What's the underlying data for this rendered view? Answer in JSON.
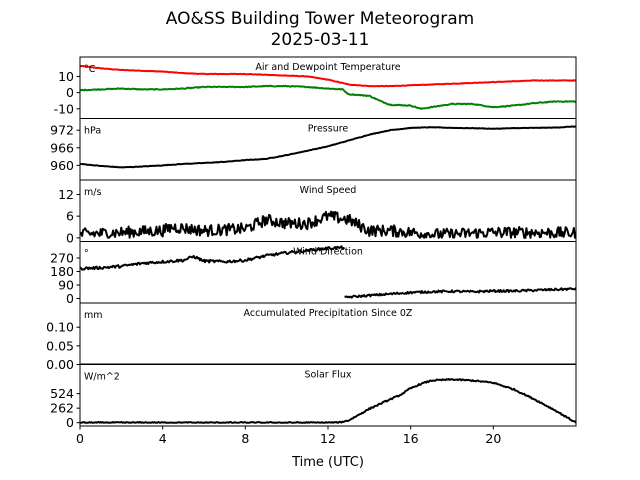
{
  "figure": {
    "title_line1": "AO&SS Building Tower Meteorogram",
    "title_line2": "2025-03-11",
    "xlabel": "Time (UTC)"
  },
  "chart_data": [
    {
      "id": "temp",
      "type": "line",
      "title": "Air and Dewpoint Temperature",
      "unit": "°C",
      "ylim": [
        -16,
        22
      ],
      "yticks": [
        10,
        0,
        -10
      ],
      "series": [
        {
          "color": "#ff0000",
          "noise": 0.15,
          "points": [
            [
              0,
              16.5
            ],
            [
              1,
              15
            ],
            [
              2,
              14
            ],
            [
              3,
              13.5
            ],
            [
              4,
              13
            ],
            [
              5,
              12
            ],
            [
              6,
              11.5
            ],
            [
              7,
              11.5
            ],
            [
              8,
              11.5
            ],
            [
              9,
              11
            ],
            [
              10,
              10.5
            ],
            [
              11,
              10
            ],
            [
              12,
              8
            ],
            [
              13,
              5
            ],
            [
              14,
              4
            ],
            [
              15,
              4
            ],
            [
              16,
              4.5
            ],
            [
              17,
              5
            ],
            [
              18,
              5.5
            ],
            [
              19,
              6
            ],
            [
              20,
              6.5
            ],
            [
              21,
              7
            ],
            [
              22,
              7.5
            ],
            [
              23,
              7.5
            ],
            [
              24,
              7.5
            ]
          ]
        },
        {
          "color": "#008000",
          "noise": 0.25,
          "points": [
            [
              0,
              1.5
            ],
            [
              1,
              2
            ],
            [
              2,
              2.5
            ],
            [
              3,
              2
            ],
            [
              4,
              2
            ],
            [
              5,
              2.5
            ],
            [
              6,
              3.5
            ],
            [
              7,
              3.5
            ],
            [
              8,
              3.5
            ],
            [
              9,
              4
            ],
            [
              10,
              4
            ],
            [
              11,
              3.5
            ],
            [
              12,
              2.5
            ],
            [
              12.7,
              2
            ],
            [
              13,
              -1
            ],
            [
              14,
              -2
            ],
            [
              14.5,
              -5
            ],
            [
              15,
              -7.5
            ],
            [
              16,
              -8
            ],
            [
              16.5,
              -10
            ],
            [
              17,
              -9
            ],
            [
              18,
              -7
            ],
            [
              19,
              -7
            ],
            [
              20,
              -9
            ],
            [
              21,
              -8
            ],
            [
              22,
              -6.5
            ],
            [
              23,
              -5.5
            ],
            [
              24,
              -5.5
            ]
          ]
        }
      ]
    },
    {
      "id": "pres",
      "type": "line",
      "title": "Pressure",
      "unit": "hPa",
      "ylim": [
        955,
        976
      ],
      "yticks": [
        972,
        966,
        960
      ],
      "series": [
        {
          "color": "#000000",
          "noise": 0.08,
          "points": [
            [
              0,
              960.5
            ],
            [
              1,
              959.8
            ],
            [
              2,
              959.3
            ],
            [
              3,
              959.6
            ],
            [
              4,
              960
            ],
            [
              5,
              960.5
            ],
            [
              6,
              960.8
            ],
            [
              7,
              961.2
            ],
            [
              8,
              961.8
            ],
            [
              9,
              962.2
            ],
            [
              10,
              963.5
            ],
            [
              11,
              965
            ],
            [
              12,
              966.5
            ],
            [
              13,
              968.5
            ],
            [
              14,
              970.5
            ],
            [
              15,
              972
            ],
            [
              16,
              972.8
            ],
            [
              17,
              973
            ],
            [
              18,
              972.8
            ],
            [
              19,
              972.7
            ],
            [
              20,
              972.5
            ],
            [
              21,
              972.7
            ],
            [
              22,
              972.8
            ],
            [
              23,
              972.9
            ],
            [
              24,
              973.3
            ]
          ]
        }
      ]
    },
    {
      "id": "wspd",
      "type": "line",
      "title": "Wind Speed",
      "unit": "m/s",
      "ylim": [
        -1,
        16
      ],
      "yticks": [
        12,
        6,
        0
      ],
      "series": [
        {
          "color": "#000000",
          "noise": 1.6,
          "points": [
            [
              0,
              1
            ],
            [
              2,
              1.5
            ],
            [
              4,
              2
            ],
            [
              4.5,
              3
            ],
            [
              6,
              2
            ],
            [
              8,
              2.5
            ],
            [
              9,
              5
            ],
            [
              10,
              4
            ],
            [
              11,
              4
            ],
            [
              12,
              6
            ],
            [
              13,
              5
            ],
            [
              13.5,
              3.5
            ],
            [
              14,
              2
            ],
            [
              15,
              2
            ],
            [
              16,
              1.5
            ],
            [
              17,
              1
            ],
            [
              18,
              1
            ],
            [
              19,
              1.3
            ],
            [
              20,
              1.5
            ],
            [
              21,
              1.5
            ],
            [
              22,
              1.5
            ],
            [
              24,
              1.3
            ]
          ]
        }
      ]
    },
    {
      "id": "wdir",
      "type": "line",
      "title": "Wind Direction",
      "unit": "°",
      "ylim": [
        -30,
        380
      ],
      "yticks": [
        270,
        180,
        90,
        0
      ],
      "series": [
        {
          "color": "#000000",
          "noise": 9,
          "points": [
            [
              0,
              200
            ],
            [
              1,
              205
            ],
            [
              2,
              215
            ],
            [
              3,
              235
            ],
            [
              4,
              245
            ],
            [
              5,
              255
            ],
            [
              5.5,
              280
            ],
            [
              6,
              250
            ],
            [
              7,
              245
            ],
            [
              8,
              255
            ],
            [
              9,
              285
            ],
            [
              10,
              305
            ],
            [
              11,
              320
            ],
            [
              12,
              335
            ],
            [
              12.8,
              340
            ]
          ]
        },
        {
          "color": "#000000",
          "noise": 7,
          "points": [
            [
              12.8,
              5
            ],
            [
              13,
              10
            ],
            [
              14,
              20
            ],
            [
              15,
              30
            ],
            [
              16,
              40
            ],
            [
              17,
              45
            ],
            [
              18,
              48
            ],
            [
              19,
              45
            ],
            [
              20,
              50
            ],
            [
              21,
              50
            ],
            [
              22,
              55
            ],
            [
              23,
              60
            ],
            [
              24,
              65
            ]
          ]
        }
      ]
    },
    {
      "id": "precip",
      "type": "line",
      "title": "Accumulated Precipitation Since 0Z",
      "unit": "mm",
      "ylim": [
        0,
        0.165
      ],
      "yticks": [
        0.1,
        0.05,
        0.0
      ],
      "series": [
        {
          "color": "#000000",
          "noise": 0,
          "points": [
            [
              0,
              0
            ],
            [
              24,
              0
            ]
          ]
        }
      ]
    },
    {
      "id": "solar",
      "type": "line",
      "title": "Solar Flux",
      "unit": "W/m^2",
      "ylim": [
        -60,
        1050
      ],
      "yticks": [
        524,
        262,
        0
      ],
      "series": [
        {
          "color": "#000000",
          "noise": 12,
          "points": [
            [
              0,
              0
            ],
            [
              12.5,
              0
            ],
            [
              13,
              40
            ],
            [
              14,
              250
            ],
            [
              15,
              420
            ],
            [
              15.5,
              500
            ],
            [
              16,
              620
            ],
            [
              16.5,
              700
            ],
            [
              17,
              760
            ],
            [
              18,
              780
            ],
            [
              19,
              760
            ],
            [
              20,
              720
            ],
            [
              21,
              600
            ],
            [
              22,
              420
            ],
            [
              23,
              220
            ],
            [
              24,
              0
            ]
          ]
        }
      ]
    }
  ],
  "xaxis": {
    "xlim": [
      0,
      24
    ],
    "ticks": [
      0,
      4,
      8,
      12,
      16,
      20
    ]
  }
}
